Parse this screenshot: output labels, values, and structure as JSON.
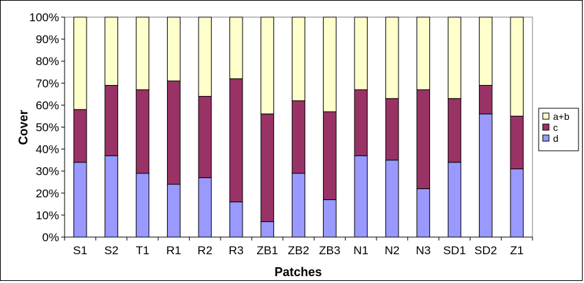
{
  "chart_data": {
    "type": "bar",
    "stacked": "percent",
    "categories": [
      "S1",
      "S2",
      "T1",
      "R1",
      "R2",
      "R3",
      "ZB1",
      "ZB2",
      "ZB3",
      "N1",
      "N2",
      "N3",
      "SD1",
      "SD2",
      "Z1"
    ],
    "series": [
      {
        "name": "d",
        "color": "#9999ff",
        "values": [
          34,
          37,
          29,
          24,
          27,
          16,
          7,
          29,
          17,
          37,
          35,
          22,
          34,
          56,
          31
        ]
      },
      {
        "name": "c",
        "color": "#993366",
        "values": [
          24,
          32,
          38,
          47,
          37,
          56,
          49,
          33,
          40,
          30,
          28,
          45,
          29,
          13,
          24
        ]
      },
      {
        "name": "a+b",
        "color": "#ffffcc",
        "values": [
          42,
          31,
          33,
          29,
          36,
          28,
          44,
          38,
          43,
          33,
          37,
          33,
          37,
          31,
          45
        ]
      }
    ],
    "legend_order": [
      "a+b",
      "c",
      "d"
    ],
    "xlabel": "Patches",
    "ylabel": "Cover",
    "ylim": [
      0,
      100
    ],
    "yticks": [
      "0%",
      "10%",
      "20%",
      "30%",
      "40%",
      "50%",
      "60%",
      "70%",
      "80%",
      "90%",
      "100%"
    ],
    "grid": false,
    "legend_position": "right"
  }
}
